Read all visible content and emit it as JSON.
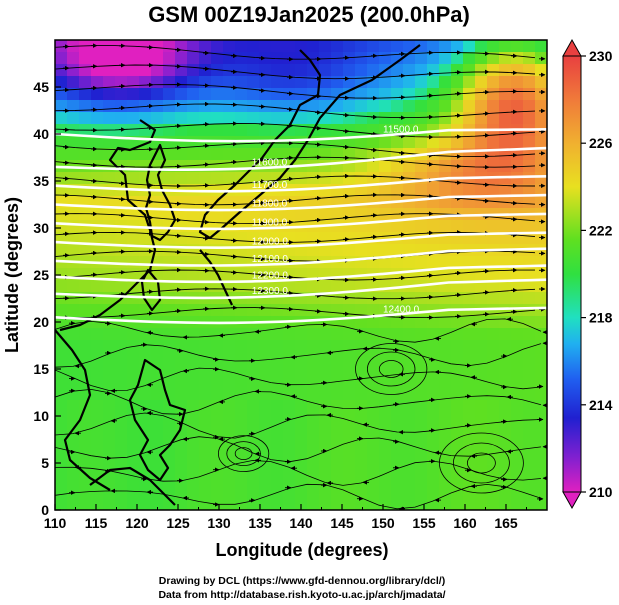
{
  "chart": {
    "title": "GSM 00Z19Jan2025 (200.0hPa)",
    "xlabel": "Longitude (degrees)",
    "ylabel": "Latitude  (degrees)",
    "x_ticks": [
      "110",
      "115",
      "120",
      "125",
      "130",
      "135",
      "140",
      "145",
      "150",
      "155",
      "160",
      "165"
    ],
    "y_ticks": [
      "0",
      "5",
      "10",
      "15",
      "20",
      "25",
      "30",
      "35",
      "40",
      "45"
    ],
    "colorbar_ticks": [
      "230",
      "226",
      "222",
      "218",
      "214",
      "210"
    ],
    "credit_line1": "Drawing by DCL (https://www.gfd-dennou.org/library/dcl/)",
    "credit_line2": "Data from http://database.rish.kyoto-u.ac.jp/arch/jmadata/"
  },
  "chart_data": {
    "type": "map",
    "title": "GSM 00Z19Jan2025 (200.0hPa)",
    "xlabel": "Longitude (degrees)",
    "ylabel": "Latitude  (degrees)",
    "xlim": [
      110,
      170
    ],
    "ylim": [
      0,
      50
    ],
    "colorbar": {
      "label_values": [
        210,
        214,
        218,
        222,
        226,
        230
      ],
      "min": 210,
      "max": 230
    },
    "contours_geopotential": [
      {
        "label": "11500.0",
        "lat_west": 40.0,
        "lat_east": 40.5
      },
      {
        "label": "11600.0",
        "lat_west": 36.5,
        "lat_east": 38.5
      },
      {
        "label": "11700.0",
        "lat_west": 34.5,
        "lat_east": 35.5
      },
      {
        "label": "11800.0",
        "lat_west": 32.5,
        "lat_east": 33.5
      },
      {
        "label": "11900.0",
        "lat_west": 30.5,
        "lat_east": 31.5
      },
      {
        "label": "12000.0",
        "lat_west": 28.5,
        "lat_east": 29.5
      },
      {
        "label": "12100.0",
        "lat_west": 26.5,
        "lat_east": 27.8
      },
      {
        "label": "12200.0",
        "lat_west": 24.8,
        "lat_east": 26.0
      },
      {
        "label": "12300.0",
        "lat_west": 23.0,
        "lat_east": 24.5
      },
      {
        "label": "12400.0",
        "lat_west": 20.5,
        "lat_east": 21.5
      }
    ],
    "wind": "streamlines with arrows, predominantly westerly north of 20N"
  },
  "colors": {
    "cb_top": "#e84040",
    "cb_bottom": "#e020c0",
    "contour": "#ffffff",
    "land": "#000000"
  }
}
